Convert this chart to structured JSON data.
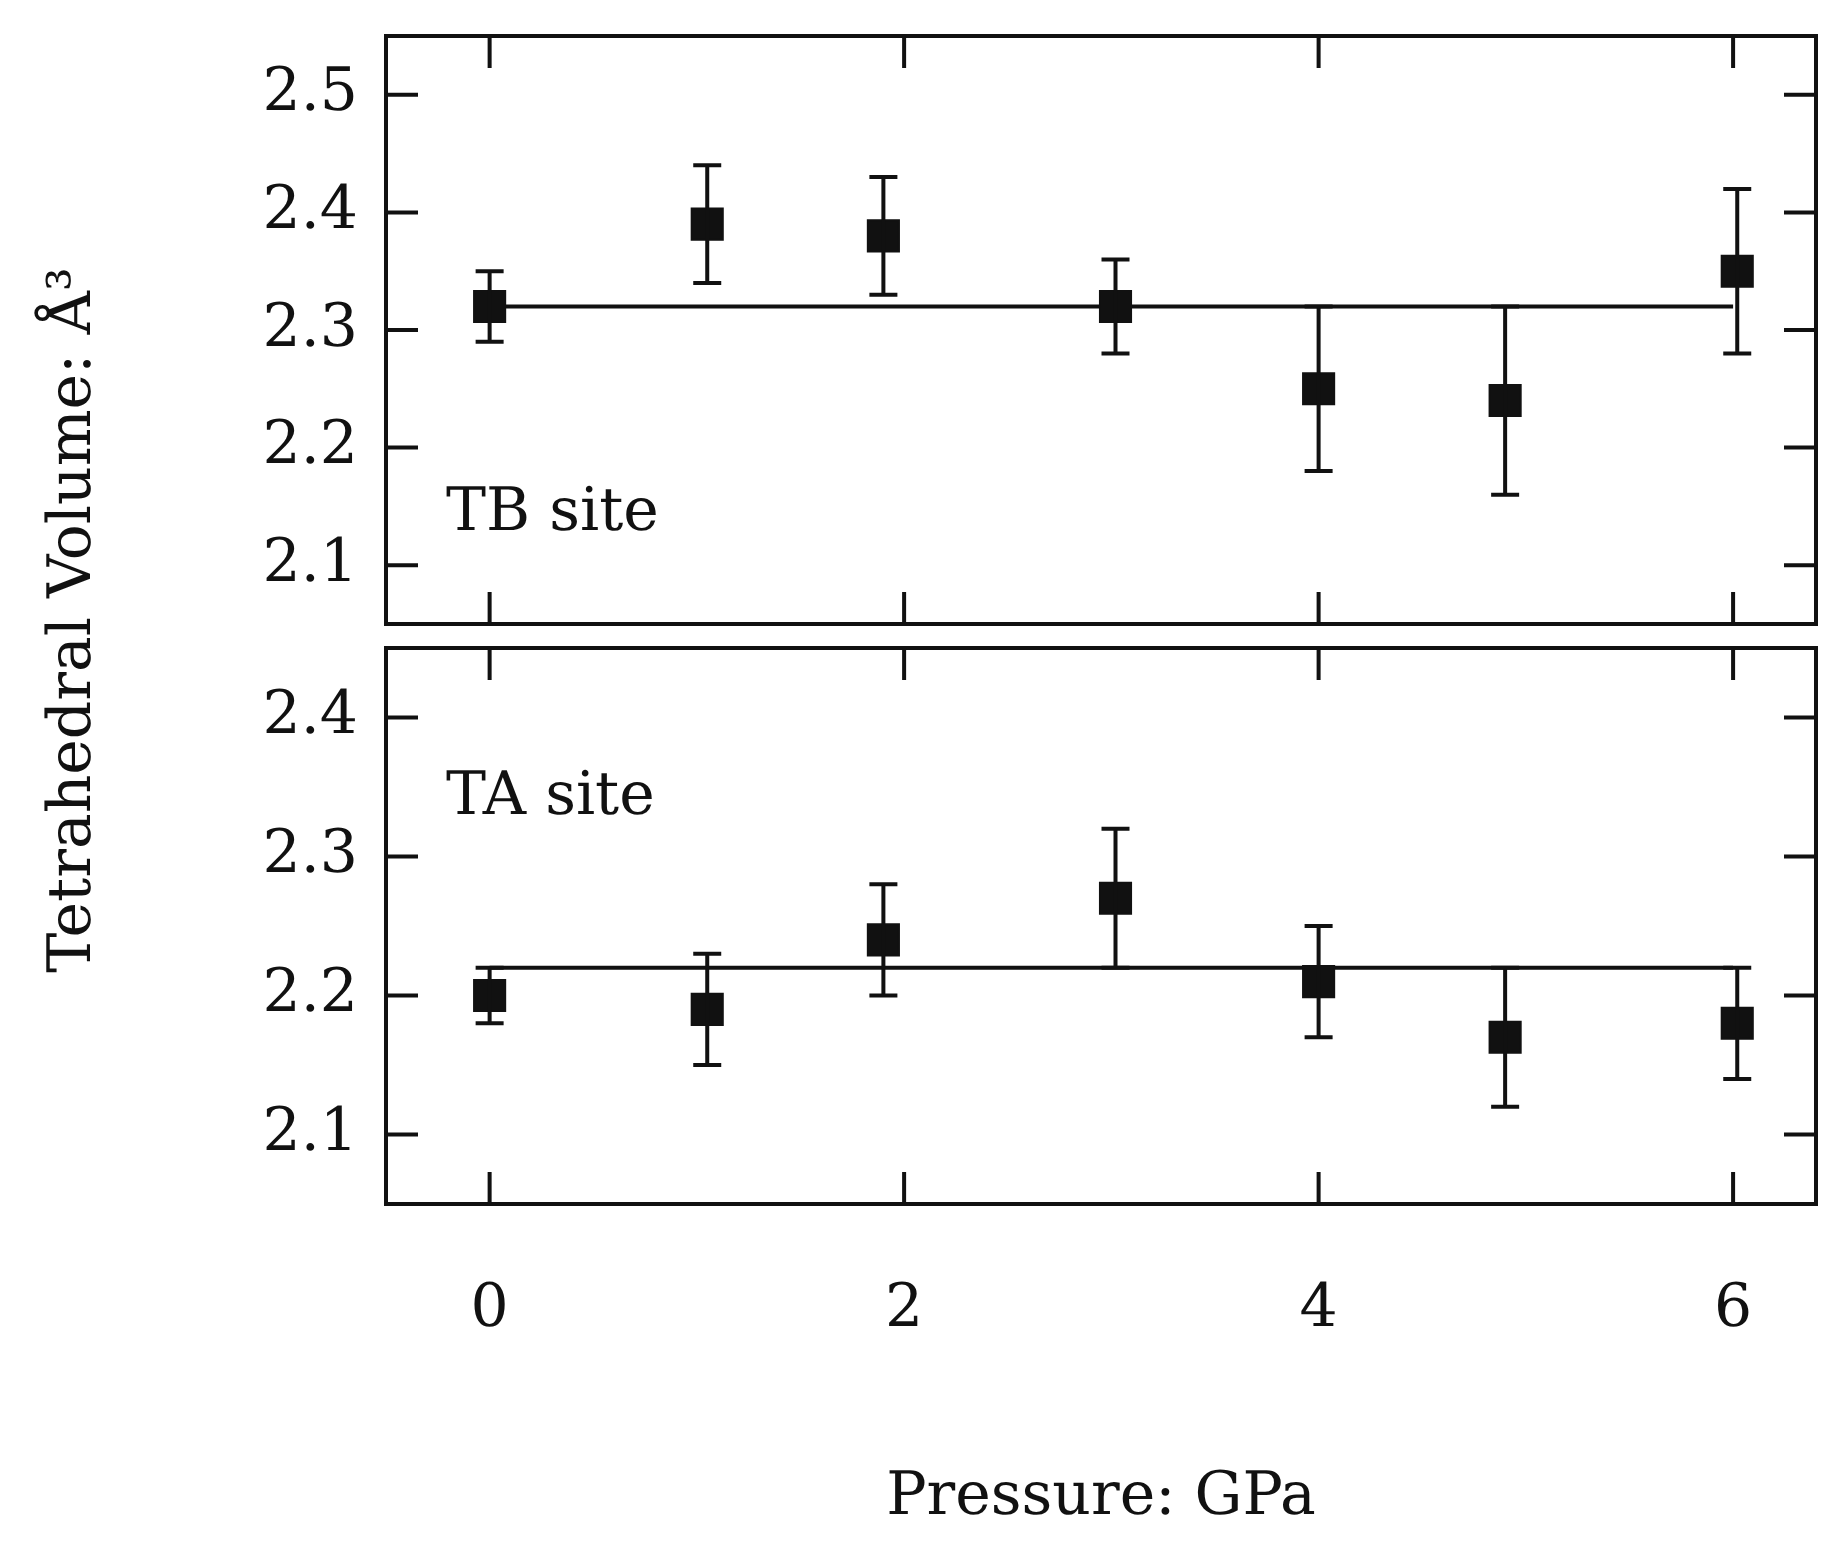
{
  "chart_data": [
    {
      "type": "scatter",
      "ylabel": "Tetrahedral Volume: Å³",
      "annotations": [
        "TB site"
      ],
      "xlim": [
        -0.5,
        6.4
      ],
      "xticks": [
        0,
        2,
        4,
        6
      ],
      "ylim": [
        2.05,
        2.55
      ],
      "yticks": [
        2.1,
        2.2,
        2.3,
        2.4,
        2.5
      ],
      "tick_labels": "y",
      "series": [
        {
          "type": "scatter",
          "marker": "square",
          "color": "#111111",
          "x": [
            0,
            1.05,
            1.9,
            3.02,
            4,
            4.9,
            6.02
          ],
          "values": [
            2.32,
            2.39,
            2.38,
            2.32,
            2.25,
            2.24,
            2.35
          ],
          "errors": [
            [
              2.29,
              2.35
            ],
            [
              2.34,
              2.44
            ],
            [
              2.33,
              2.43
            ],
            [
              2.28,
              2.36
            ],
            [
              2.18,
              2.32
            ],
            [
              2.16,
              2.32
            ],
            [
              2.28,
              2.42
            ]
          ]
        },
        {
          "type": "line",
          "marker": "none",
          "color": "#111111",
          "x": [
            0,
            6
          ],
          "values": [
            2.32,
            2.32
          ]
        }
      ]
    },
    {
      "type": "scatter",
      "xlabel": "Pressure: GPa",
      "annotations": [
        "TA site"
      ],
      "xlim": [
        -0.5,
        6.4
      ],
      "xticks": [
        0,
        2,
        4,
        6
      ],
      "ylim": [
        2.05,
        2.45
      ],
      "yticks": [
        2.1,
        2.2,
        2.3,
        2.4
      ],
      "series": [
        {
          "type": "scatter",
          "marker": "square",
          "color": "#111111",
          "x": [
            0,
            1.05,
            1.9,
            3.02,
            4,
            4.9,
            6.02
          ],
          "values": [
            2.2,
            2.19,
            2.24,
            2.27,
            2.21,
            2.17,
            2.18
          ],
          "errors": [
            [
              2.18,
              2.22
            ],
            [
              2.15,
              2.23
            ],
            [
              2.2,
              2.28
            ],
            [
              2.22,
              2.32
            ],
            [
              2.17,
              2.25
            ],
            [
              2.12,
              2.22
            ],
            [
              2.14,
              2.22
            ]
          ]
        },
        {
          "type": "line",
          "marker": "none",
          "color": "#111111",
          "x": [
            0,
            6
          ],
          "values": [
            2.22,
            2.22
          ]
        }
      ]
    }
  ]
}
